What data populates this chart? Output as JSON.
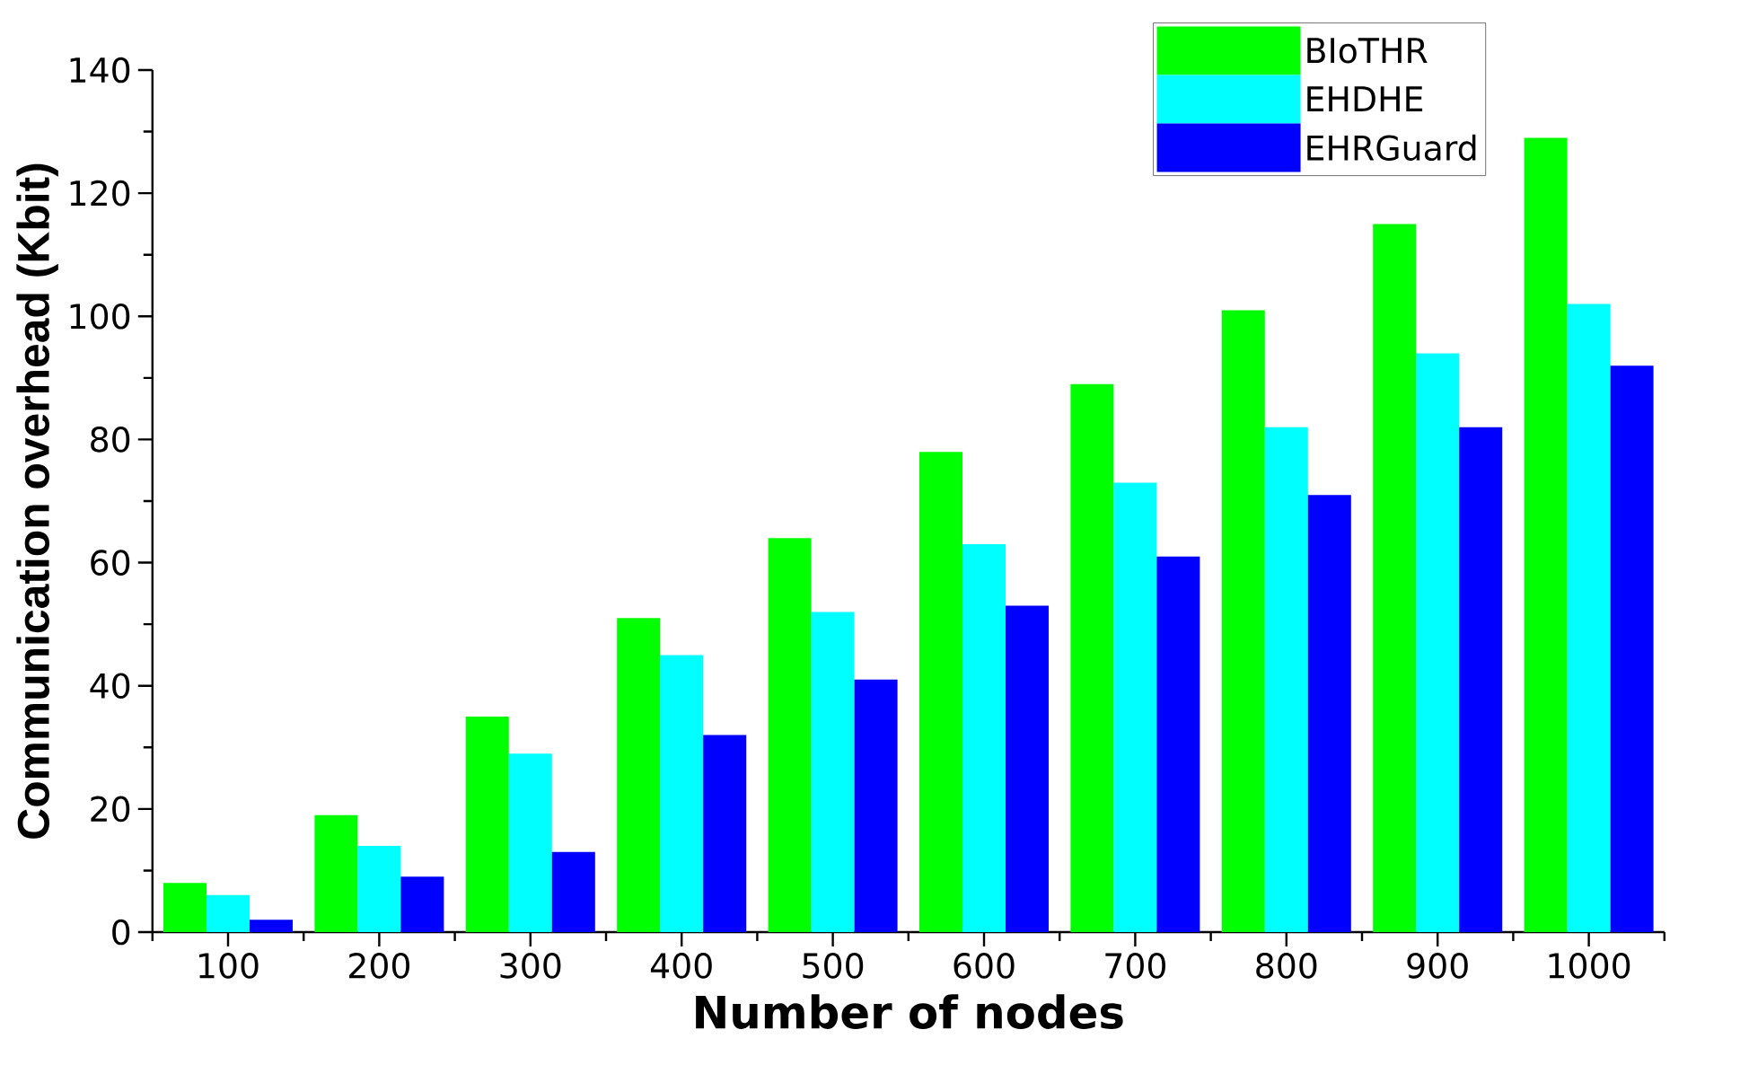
{
  "chart_data": {
    "type": "bar",
    "xlabel": "Number of nodes",
    "ylabel": "Communication overhead (Kbit)",
    "categories": [
      "100",
      "200",
      "300",
      "400",
      "500",
      "600",
      "700",
      "800",
      "900",
      "1000"
    ],
    "series": [
      {
        "name": "BIoTHR",
        "color": "#00ff00",
        "values": [
          8,
          19,
          35,
          51,
          64,
          78,
          89,
          101,
          115,
          129
        ]
      },
      {
        "name": "EHDHE",
        "color": "#00ffff",
        "values": [
          6,
          14,
          29,
          45,
          52,
          63,
          73,
          82,
          94,
          102
        ]
      },
      {
        "name": "EHRGuard",
        "color": "#0000ff",
        "values": [
          2,
          9,
          13,
          32,
          41,
          53,
          61,
          71,
          82,
          92
        ]
      }
    ],
    "ylim": [
      0,
      140
    ],
    "yticks": [
      0,
      20,
      40,
      60,
      80,
      100,
      120,
      140
    ],
    "legend": "top right"
  }
}
